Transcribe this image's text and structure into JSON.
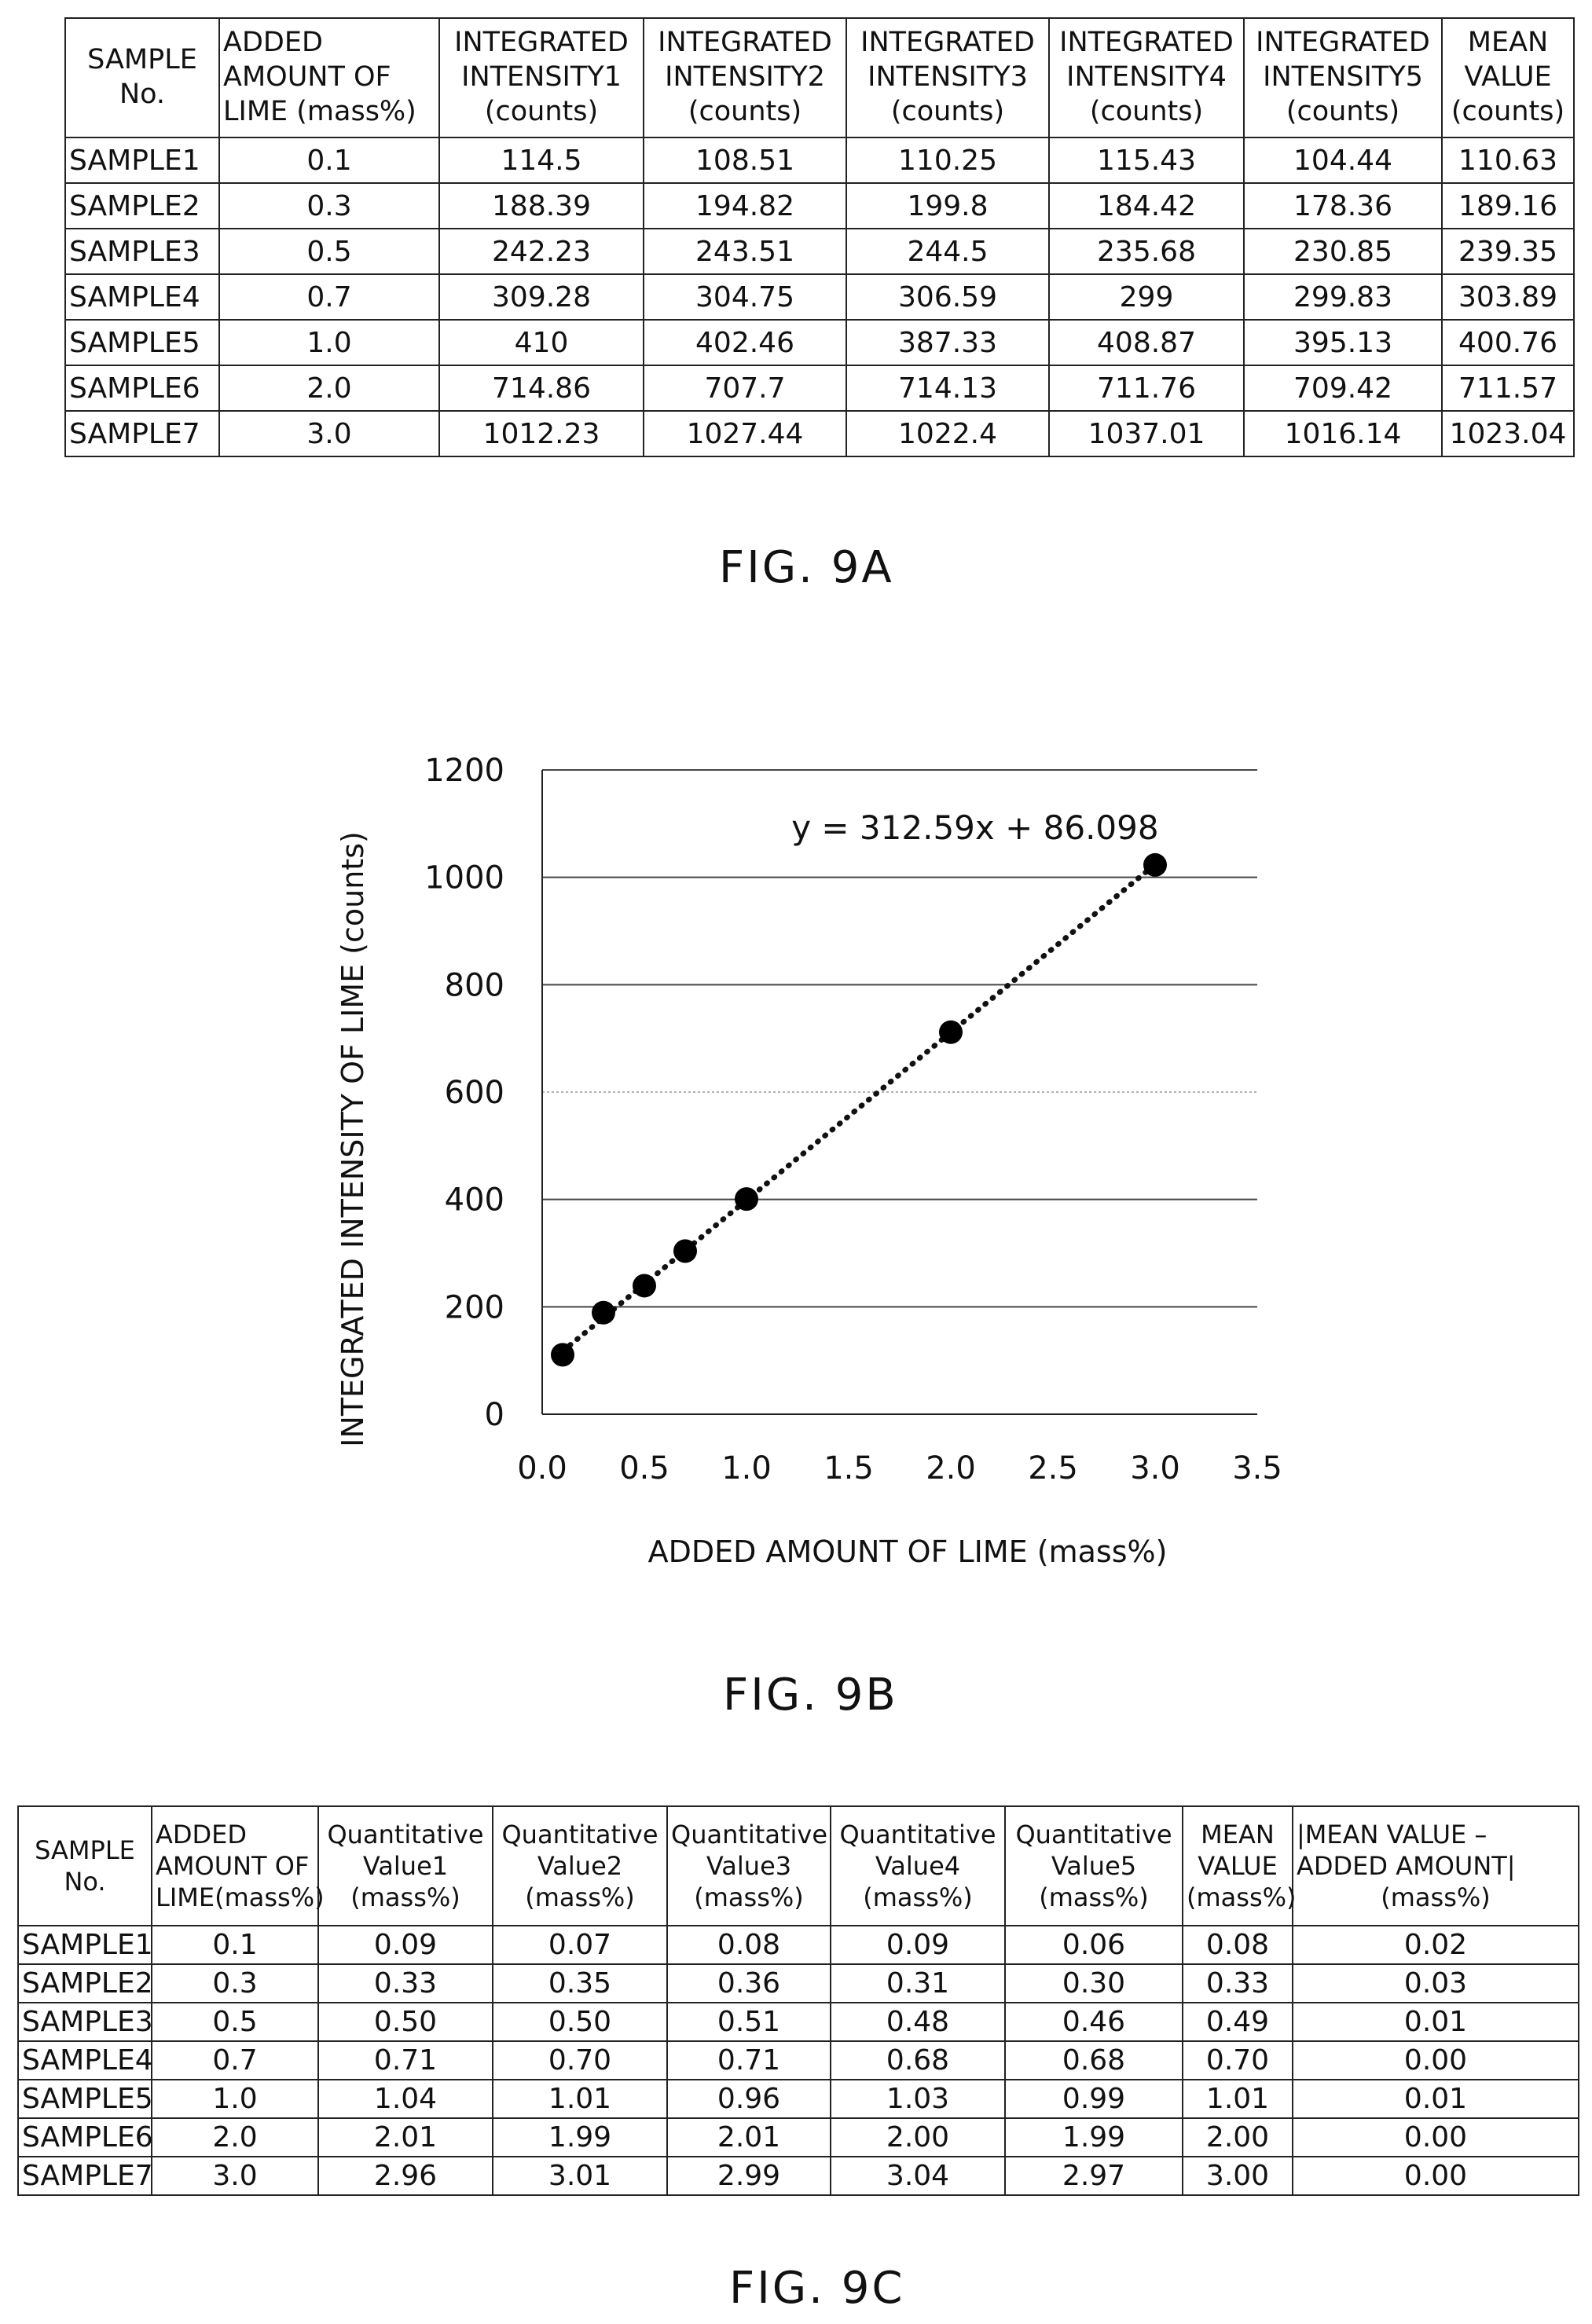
{
  "table_9a": {
    "headers": [
      [
        "SAMPLE",
        "No."
      ],
      [
        "ADDED",
        "AMOUNT OF",
        "LIME (mass%)"
      ],
      [
        "INTEGRATED",
        "INTENSITY1",
        "(counts)"
      ],
      [
        "INTEGRATED",
        "INTENSITY2",
        "(counts)"
      ],
      [
        "INTEGRATED",
        "INTENSITY3",
        "(counts)"
      ],
      [
        "INTEGRATED",
        "INTENSITY4",
        "(counts)"
      ],
      [
        "INTEGRATED",
        "INTENSITY5",
        "(counts)"
      ],
      [
        "MEAN",
        "VALUE",
        "(counts)"
      ]
    ],
    "rows": [
      [
        "SAMPLE1",
        "0.1",
        "114.5",
        "108.51",
        "110.25",
        "115.43",
        "104.44",
        "110.63"
      ],
      [
        "SAMPLE2",
        "0.3",
        "188.39",
        "194.82",
        "199.8",
        "184.42",
        "178.36",
        "189.16"
      ],
      [
        "SAMPLE3",
        "0.5",
        "242.23",
        "243.51",
        "244.5",
        "235.68",
        "230.85",
        "239.35"
      ],
      [
        "SAMPLE4",
        "0.7",
        "309.28",
        "304.75",
        "306.59",
        "299",
        "299.83",
        "303.89"
      ],
      [
        "SAMPLE5",
        "1.0",
        "410",
        "402.46",
        "387.33",
        "408.87",
        "395.13",
        "400.76"
      ],
      [
        "SAMPLE6",
        "2.0",
        "714.86",
        "707.7",
        "714.13",
        "711.76",
        "709.42",
        "711.57"
      ],
      [
        "SAMPLE7",
        "3.0",
        "1012.23",
        "1027.44",
        "1022.4",
        "1037.01",
        "1016.14",
        "1023.04"
      ]
    ]
  },
  "fig_9a_label": "FIG. 9A",
  "chart_data": {
    "type": "scatter",
    "x": [
      0.1,
      0.3,
      0.5,
      0.7,
      1.0,
      2.0,
      3.0
    ],
    "y": [
      110.63,
      189.16,
      239.35,
      303.89,
      400.76,
      711.57,
      1023.04
    ],
    "trendline": {
      "slope": 312.59,
      "intercept": 86.098,
      "style": "dotted"
    },
    "equation_label": "y = 312.59x + 86.098",
    "xlabel": "ADDED AMOUNT OF LIME (mass%)",
    "ylabel": "INTEGRATED INTENSITY OF LIME (counts)",
    "xlim": [
      0.0,
      3.5
    ],
    "ylim": [
      0,
      1200
    ],
    "xticks": [
      "0.0",
      "0.5",
      "1.0",
      "1.5",
      "2.0",
      "2.5",
      "3.0",
      "3.5"
    ],
    "yticks": [
      "0",
      "200",
      "400",
      "600",
      "800",
      "1000",
      "1200"
    ],
    "grid": "horizontal",
    "legend": "none",
    "marker_color": "#000000"
  },
  "fig_9b_label": "FIG. 9B",
  "table_9c": {
    "headers": [
      [
        "SAMPLE",
        "No."
      ],
      [
        "ADDED",
        "AMOUNT OF",
        "LIME(mass%)"
      ],
      [
        "Quantitative",
        "Value1",
        "(mass%)"
      ],
      [
        "Quantitative",
        "Value2",
        "(mass%)"
      ],
      [
        "Quantitative",
        "Value3",
        "(mass%)"
      ],
      [
        "Quantitative",
        "Value4",
        "(mass%)"
      ],
      [
        "Quantitative",
        "Value5",
        "(mass%)"
      ],
      [
        "MEAN",
        "VALUE",
        "(mass%)"
      ],
      [
        "|MEAN VALUE –",
        "ADDED AMOUNT|",
        "(mass%)"
      ]
    ],
    "rows": [
      [
        "SAMPLE1",
        "0.1",
        "0.09",
        "0.07",
        "0.08",
        "0.09",
        "0.06",
        "0.08",
        "0.02"
      ],
      [
        "SAMPLE2",
        "0.3",
        "0.33",
        "0.35",
        "0.36",
        "0.31",
        "0.30",
        "0.33",
        "0.03"
      ],
      [
        "SAMPLE3",
        "0.5",
        "0.50",
        "0.50",
        "0.51",
        "0.48",
        "0.46",
        "0.49",
        "0.01"
      ],
      [
        "SAMPLE4",
        "0.7",
        "0.71",
        "0.70",
        "0.71",
        "0.68",
        "0.68",
        "0.70",
        "0.00"
      ],
      [
        "SAMPLE5",
        "1.0",
        "1.04",
        "1.01",
        "0.96",
        "1.03",
        "0.99",
        "1.01",
        "0.01"
      ],
      [
        "SAMPLE6",
        "2.0",
        "2.01",
        "1.99",
        "2.01",
        "2.00",
        "1.99",
        "2.00",
        "0.00"
      ],
      [
        "SAMPLE7",
        "3.0",
        "2.96",
        "3.01",
        "2.99",
        "3.04",
        "2.97",
        "3.00",
        "0.00"
      ]
    ]
  },
  "fig_9c_label": "FIG. 9C"
}
